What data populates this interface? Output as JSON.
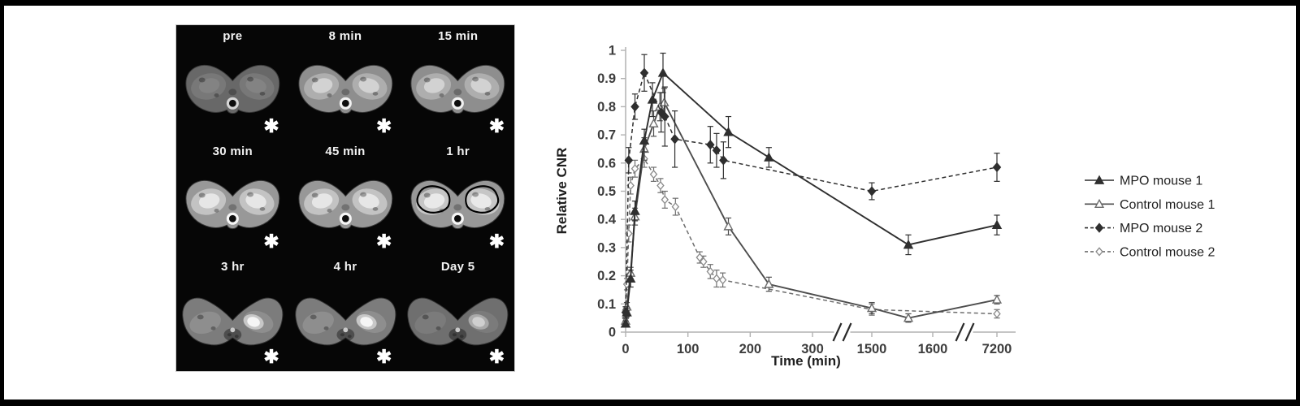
{
  "figure": {
    "background": "#ffffff",
    "frame_color": "#000000"
  },
  "mri_panel": {
    "background": "#060606",
    "asterisk": "✱",
    "frames": [
      {
        "label": "pre",
        "enhancement": "baseline"
      },
      {
        "label": "8 min",
        "enhancement": "strong"
      },
      {
        "label": "15 min",
        "enhancement": "strong"
      },
      {
        "label": "30 min",
        "enhancement": "peak"
      },
      {
        "label": "45 min",
        "enhancement": "peak"
      },
      {
        "label": "1 hr",
        "enhancement": "peak-roi"
      },
      {
        "label": "3 hr",
        "enhancement": "fading"
      },
      {
        "label": "4 hr",
        "enhancement": "fading"
      },
      {
        "label": "Day 5",
        "enhancement": "faint"
      }
    ]
  },
  "chart_data": {
    "type": "line",
    "title": "",
    "xlabel": "Time (min)",
    "ylabel": "Relative CNR",
    "ylim": [
      0,
      1
    ],
    "grid": false,
    "legend_position": "right",
    "x_ticks": [
      0,
      100,
      200,
      300,
      1500,
      1600,
      7200
    ],
    "y_ticks": [
      0,
      0.1,
      0.2,
      0.3,
      0.4,
      0.5,
      0.6,
      0.7,
      0.8,
      0.9,
      1
    ],
    "axis_break_mark": "//",
    "x_axis_breaks": [
      [
        300,
        1500
      ],
      [
        1600,
        7200
      ]
    ],
    "series": [
      {
        "name": "MPO mouse 1",
        "line": "solid",
        "marker": "triangle-filled",
        "color": "#2f2f2f",
        "points": [
          [
            0,
            0.03,
            0.01
          ],
          [
            2,
            0.07,
            0.015
          ],
          [
            8,
            0.19,
            0.03
          ],
          [
            15,
            0.43,
            0.035
          ],
          [
            30,
            0.68,
            0.04
          ],
          [
            43,
            0.825,
            0.06
          ],
          [
            60,
            0.92,
            0.07
          ],
          [
            165,
            0.71,
            0.055
          ],
          [
            230,
            0.62,
            0.035
          ],
          [
            1560,
            0.31,
            0.035
          ],
          [
            7200,
            0.38,
            0.035
          ]
        ]
      },
      {
        "name": "Control mouse 1",
        "line": "solid",
        "marker": "triangle-open",
        "color": "#4d4d4d",
        "points": [
          [
            0,
            0.04,
            0.01
          ],
          [
            2,
            0.09,
            0.015
          ],
          [
            8,
            0.21,
            0.02
          ],
          [
            15,
            0.41,
            0.03
          ],
          [
            30,
            0.65,
            0.04
          ],
          [
            45,
            0.74,
            0.045
          ],
          [
            55,
            0.8,
            0.05
          ],
          [
            62,
            0.815,
            0.05
          ],
          [
            165,
            0.375,
            0.03
          ],
          [
            230,
            0.17,
            0.025
          ],
          [
            1500,
            0.085,
            0.02
          ],
          [
            1560,
            0.05,
            0.015
          ],
          [
            7200,
            0.115,
            0.015
          ]
        ]
      },
      {
        "name": "MPO mouse 2",
        "line": "dashed",
        "marker": "diamond-filled",
        "color": "#2f2f2f",
        "points": [
          [
            0,
            0.07,
            0.02
          ],
          [
            5,
            0.61,
            0.045
          ],
          [
            15,
            0.8,
            0.045
          ],
          [
            30,
            0.92,
            0.065
          ],
          [
            57,
            0.78,
            0.07
          ],
          [
            63,
            0.765,
            0.105
          ],
          [
            79,
            0.685,
            0.1
          ],
          [
            136,
            0.665,
            0.065
          ],
          [
            146,
            0.645,
            0.06
          ],
          [
            157,
            0.61,
            0.065
          ],
          [
            1500,
            0.5,
            0.03
          ],
          [
            7200,
            0.585,
            0.05
          ]
        ]
      },
      {
        "name": "Control mouse 2",
        "line": "dashed",
        "marker": "diamond-open",
        "color": "#6e6e6e",
        "points": [
          [
            0,
            0.05,
            0.012
          ],
          [
            2,
            0.17,
            0.02
          ],
          [
            5,
            0.35,
            0.03
          ],
          [
            8,
            0.52,
            0.03
          ],
          [
            15,
            0.58,
            0.03
          ],
          [
            30,
            0.615,
            0.03
          ],
          [
            45,
            0.56,
            0.025
          ],
          [
            56,
            0.52,
            0.025
          ],
          [
            63,
            0.47,
            0.03
          ],
          [
            80,
            0.445,
            0.03
          ],
          [
            119,
            0.265,
            0.02
          ],
          [
            125,
            0.25,
            0.02
          ],
          [
            136,
            0.215,
            0.025
          ],
          [
            146,
            0.19,
            0.03
          ],
          [
            156,
            0.185,
            0.025
          ],
          [
            1500,
            0.08,
            0.02
          ],
          [
            7200,
            0.065,
            0.015
          ]
        ]
      }
    ],
    "colors": {
      "axis": "#b2b2b2",
      "tick_text": "#3d3d3d",
      "break_mark": "#2a2a2a"
    }
  }
}
